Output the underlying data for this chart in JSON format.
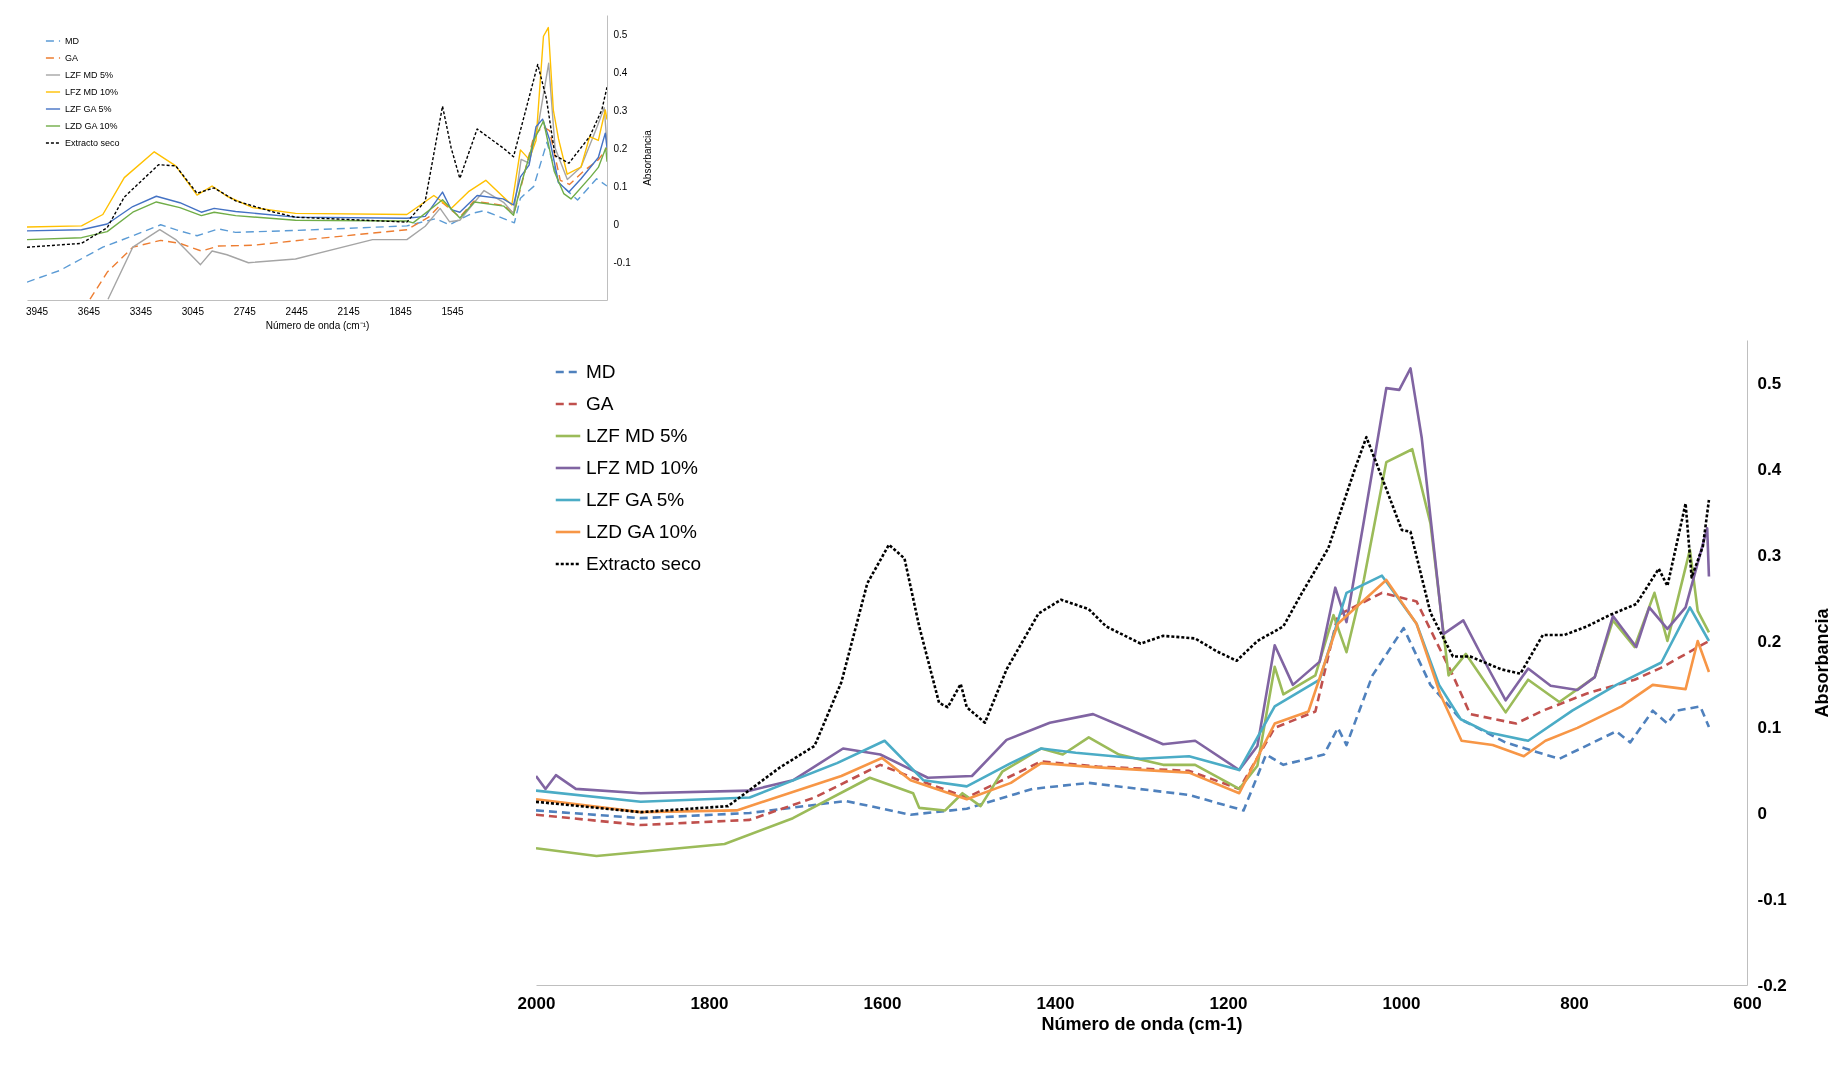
{
  "chart_data": [
    {
      "type": "line",
      "xlabel": "Número de onda (cm⁻¹)",
      "ylabel": "Absorbancia",
      "xlim": [
        4000,
        650
      ],
      "xticks": [
        3945,
        3645,
        3345,
        3045,
        2745,
        2445,
        2145,
        1845,
        1545
      ],
      "ylim": [
        -0.2,
        0.55
      ],
      "yticks": [
        -0.1,
        0,
        0.1,
        0.2,
        0.3,
        0.4,
        0.5
      ],
      "grid": false,
      "legend": "top left",
      "series": [
        {
          "name": "MD",
          "color": "#5b9bd5",
          "line_style": "dashed",
          "x": [
            4000,
            3809,
            3562,
            3389,
            3228,
            3141,
            3018,
            2894,
            2795,
            2449,
            1806,
            1640,
            1560,
            1430,
            1360,
            1185,
            1150,
            1073,
            997,
            930,
            820,
            710,
            650
          ],
          "values": [
            -0.153,
            -0.122,
            -0.061,
            -0.031,
            -0.002,
            -0.015,
            -0.031,
            -0.013,
            -0.022,
            -0.017,
            -0.005,
            0.014,
            -0.002,
            0.028,
            0.035,
            0.003,
            0.068,
            0.099,
            0.215,
            0.109,
            0.063,
            0.119,
            0.1
          ]
        },
        {
          "name": "GA",
          "color": "#ed7d31",
          "line_style": "dashed",
          "x": [
            3636,
            3537,
            3389,
            3228,
            3117,
            2993,
            2894,
            2696,
            2449,
            1806,
            1680,
            1600,
            1500,
            1420,
            1245,
            1187,
            1146,
            1073,
            1022,
            982,
            920,
            867,
            785,
            700,
            650
          ],
          "values": [
            -0.198,
            -0.127,
            -0.061,
            -0.043,
            -0.051,
            -0.071,
            -0.058,
            -0.056,
            -0.044,
            -0.015,
            0.018,
            0.056,
            0.018,
            0.06,
            0.049,
            0.028,
            0.099,
            0.23,
            0.256,
            0.246,
            0.115,
            0.104,
            0.139,
            0.169,
            0.2
          ]
        },
        {
          "name": "LZF MD 5%",
          "color": "#a5a5a5",
          "line_style": "solid",
          "x": [
            3532,
            3389,
            3233,
            3141,
            2998,
            2931,
            2845,
            2721,
            2449,
            2004,
            1806,
            1700,
            1614,
            1560,
            1500,
            1360,
            1245,
            1190,
            1146,
            1100,
            1043,
            987,
            950,
            879,
            800,
            707,
            666,
            650
          ],
          "values": [
            -0.198,
            -0.061,
            -0.015,
            -0.041,
            -0.107,
            -0.071,
            -0.081,
            -0.102,
            -0.092,
            -0.041,
            -0.041,
            -0.006,
            0.041,
            0.006,
            0.01,
            0.088,
            0.056,
            0.028,
            0.17,
            0.16,
            0.271,
            0.423,
            0.2,
            0.117,
            0.15,
            0.256,
            0.306,
            0.21
          ]
        },
        {
          "name": "LFZ MD 10%",
          "color": "#ffc000",
          "line_style": "solid",
          "x": [
            4000,
            3685,
            3562,
            3438,
            3265,
            3141,
            3018,
            2931,
            2845,
            2696,
            2449,
            1806,
            1650,
            1550,
            1450,
            1350,
            1200,
            1150,
            1100,
            1060,
            1017,
            989,
            960,
            930,
            880,
            800,
            750,
            700,
            660,
            650
          ],
          "values": [
            -0.008,
            -0.005,
            0.025,
            0.122,
            0.19,
            0.153,
            0.076,
            0.1,
            0.073,
            0.043,
            0.028,
            0.025,
            0.075,
            0.041,
            0.085,
            0.115,
            0.05,
            0.195,
            0.17,
            0.22,
            0.494,
            0.517,
            0.3,
            0.224,
            0.131,
            0.15,
            0.23,
            0.22,
            0.3,
            0.275
          ]
        },
        {
          "name": "LZF GA 5%",
          "color": "#4472c4",
          "line_style": "solid",
          "x": [
            4000,
            3685,
            3537,
            3389,
            3253,
            3117,
            2993,
            2919,
            2795,
            2449,
            1806,
            1700,
            1600,
            1550,
            1500,
            1400,
            1250,
            1190,
            1150,
            1100,
            1060,
            1022,
            980,
            930,
            870,
            800,
            700,
            660,
            650
          ],
          "values": [
            -0.018,
            -0.015,
            0,
            0.046,
            0.073,
            0.056,
            0.031,
            0.041,
            0.033,
            0.018,
            0.015,
            0.02,
            0.084,
            0.038,
            0.031,
            0.075,
            0.066,
            0.05,
            0.124,
            0.155,
            0.256,
            0.276,
            0.22,
            0.109,
            0.084,
            0.119,
            0.175,
            0.239,
            0.2
          ]
        },
        {
          "name": "LZD GA 10%",
          "color": "#70ad47",
          "line_style": "solid",
          "x": [
            4000,
            3685,
            3537,
            3389,
            3253,
            3117,
            2993,
            2919,
            2795,
            2449,
            1806,
            1770,
            1600,
            1500,
            1416,
            1245,
            1190,
            1146,
            1073,
            1017,
            955,
            900,
            858,
            745,
            700,
            657,
            650
          ],
          "values": [
            -0.041,
            -0.036,
            -0.02,
            0.031,
            0.058,
            0.043,
            0.022,
            0.031,
            0.022,
            0.01,
            0.008,
            0.003,
            0.064,
            0.016,
            0.058,
            0.047,
            0.023,
            0.104,
            0.22,
            0.271,
            0.139,
            0.08,
            0.066,
            0.124,
            0.149,
            0.2,
            0.164
          ]
        },
        {
          "name": "Extracto seco",
          "color": "#000000",
          "line_style": "dotted",
          "x": [
            4000,
            3685,
            3537,
            3438,
            3240,
            3141,
            3018,
            2919,
            2795,
            2572,
            2449,
            1806,
            1700,
            1600,
            1550,
            1500,
            1400,
            1250,
            1190,
            1050,
            1000,
            950,
            870,
            750,
            680,
            650
          ],
          "values": [
            -0.061,
            -0.051,
            -0.01,
            0.071,
            0.156,
            0.153,
            0.081,
            0.095,
            0.061,
            0.031,
            0.018,
            0.005,
            0.06,
            0.31,
            0.2,
            0.12,
            0.25,
            0.2,
            0.177,
            0.42,
            0.33,
            0.18,
            0.16,
            0.23,
            0.3,
            0.36
          ]
        }
      ]
    },
    {
      "type": "line",
      "xlabel": "Número de onda (cm-1)",
      "ylabel": "Absorbancia",
      "xlim": [
        2000,
        600
      ],
      "xticks": [
        2000,
        1800,
        1600,
        1400,
        1200,
        1000,
        800,
        600
      ],
      "ylim": [
        -0.2,
        0.55
      ],
      "yticks": [
        -0.2,
        -0.1,
        0,
        0.1,
        0.2,
        0.3,
        0.4,
        0.5
      ],
      "grid": false,
      "legend": "top left",
      "series": [
        {
          "name": "MD",
          "color": "#4f81bd",
          "line_style": "dashed",
          "x": [
            2000,
            1879,
            1753,
            1642,
            1567,
            1502,
            1426,
            1361,
            1245,
            1182,
            1156,
            1136,
            1089,
            1073,
            1063,
            1033,
            997,
            966,
            931,
            879,
            817,
            751,
            735,
            709,
            692,
            681,
            654,
            644
          ],
          "values": [
            0.003,
            -0.006,
            0,
            0.014,
            -0.002,
            0.005,
            0.028,
            0.035,
            0.021,
            0.003,
            0.068,
            0.056,
            0.068,
            0.099,
            0.079,
            0.16,
            0.215,
            0.149,
            0.109,
            0.082,
            0.063,
            0.095,
            0.082,
            0.119,
            0.104,
            0.119,
            0.124,
            0.1
          ]
        },
        {
          "name": "GA",
          "color": "#c0504d",
          "line_style": "dashed",
          "x": [
            2000,
            1879,
            1753,
            1678,
            1602,
            1557,
            1502,
            1416,
            1351,
            1245,
            1187,
            1146,
            1099,
            1073,
            1022,
            982,
            940,
            920,
            867,
            836,
            785,
            730,
            699,
            644
          ],
          "values": [
            -0.002,
            -0.014,
            -0.008,
            0.018,
            0.056,
            0.038,
            0.018,
            0.06,
            0.054,
            0.049,
            0.028,
            0.099,
            0.118,
            0.23,
            0.256,
            0.246,
            0.16,
            0.115,
            0.104,
            0.119,
            0.139,
            0.155,
            0.169,
            0.2
          ]
        },
        {
          "name": "LZF MD 5%",
          "color": "#9bbb59",
          "line_style": "solid",
          "x": [
            2000,
            1930,
            1782,
            1703,
            1614,
            1564,
            1557,
            1527,
            1507,
            1486,
            1461,
            1416,
            1391,
            1361,
            1326,
            1275,
            1238,
            1187,
            1166,
            1146,
            1136,
            1099,
            1078,
            1063,
            1043,
            1017,
            987,
            966,
            945,
            925,
            879,
            853,
            817,
            776,
            755,
            730,
            707,
            692,
            666,
            657,
            644
          ],
          "values": [
            -0.041,
            -0.05,
            -0.036,
            -0.006,
            0.041,
            0.023,
            0.006,
            0.003,
            0.023,
            0.008,
            0.048,
            0.075,
            0.068,
            0.088,
            0.068,
            0.056,
            0.056,
            0.028,
            0.055,
            0.17,
            0.138,
            0.16,
            0.23,
            0.187,
            0.271,
            0.408,
            0.423,
            0.337,
            0.16,
            0.185,
            0.117,
            0.155,
            0.129,
            0.158,
            0.224,
            0.193,
            0.256,
            0.2,
            0.306,
            0.235,
            0.21
          ]
        },
        {
          "name": "LFZ MD 10%",
          "color": "#8064a2",
          "line_style": "solid",
          "x": [
            2000,
            1989,
            1977,
            1954,
            1879,
            1753,
            1703,
            1645,
            1602,
            1547,
            1496,
            1456,
            1406,
            1356,
            1316,
            1275,
            1238,
            1187,
            1166,
            1146,
            1125,
            1094,
            1076,
            1063,
            1043,
            1017,
            1002,
            989,
            976,
            951,
            928,
            899,
            879,
            853,
            827,
            796,
            776,
            755,
            728,
            713,
            692,
            671,
            646,
            644
          ],
          "values": [
            0.043,
            0.028,
            0.044,
            0.028,
            0.023,
            0.026,
            0.038,
            0.075,
            0.068,
            0.041,
            0.043,
            0.085,
            0.105,
            0.115,
            0.098,
            0.08,
            0.084,
            0.05,
            0.078,
            0.195,
            0.149,
            0.176,
            0.262,
            0.222,
            0.339,
            0.494,
            0.492,
            0.517,
            0.436,
            0.208,
            0.224,
            0.168,
            0.131,
            0.168,
            0.148,
            0.143,
            0.158,
            0.229,
            0.193,
            0.239,
            0.214,
            0.239,
            0.331,
            0.275
          ]
        },
        {
          "name": "LZF GA 5%",
          "color": "#4bacc6",
          "line_style": "solid",
          "x": [
            2000,
            1879,
            1753,
            1652,
            1597,
            1552,
            1502,
            1451,
            1416,
            1376,
            1301,
            1245,
            1187,
            1146,
            1094,
            1063,
            1022,
            982,
            956,
            931,
            900,
            853,
            802,
            751,
            699,
            666,
            644
          ],
          "values": [
            0.026,
            0.013,
            0.018,
            0.058,
            0.084,
            0.038,
            0.031,
            0.058,
            0.075,
            0.07,
            0.063,
            0.066,
            0.05,
            0.124,
            0.155,
            0.256,
            0.276,
            0.22,
            0.149,
            0.109,
            0.094,
            0.084,
            0.119,
            0.149,
            0.175,
            0.239,
            0.2
          ]
        },
        {
          "name": "LZD GA 10%",
          "color": "#f79646",
          "line_style": "solid",
          "x": [
            2000,
            1879,
            1768,
            1647,
            1600,
            1567,
            1502,
            1451,
            1416,
            1351,
            1245,
            1187,
            1146,
            1107,
            1073,
            1017,
            982,
            955,
            930,
            894,
            858,
            833,
            796,
            745,
            709,
            671,
            657,
            644
          ],
          "values": [
            0.016,
            0.001,
            0.003,
            0.043,
            0.064,
            0.038,
            0.016,
            0.035,
            0.058,
            0.053,
            0.047,
            0.023,
            0.104,
            0.118,
            0.22,
            0.271,
            0.22,
            0.139,
            0.084,
            0.079,
            0.066,
            0.084,
            0.099,
            0.124,
            0.149,
            0.144,
            0.2,
            0.164
          ]
        },
        {
          "name": "Extracto seco",
          "color": "#000000",
          "line_style": "dotted",
          "x": [
            2000,
            1879,
            1778,
            1718,
            1678,
            1647,
            1617,
            1592,
            1574,
            1557,
            1534,
            1524,
            1509,
            1502,
            1481,
            1456,
            1419,
            1393,
            1361,
            1341,
            1301,
            1275,
            1238,
            1213,
            1190,
            1166,
            1136,
            1115,
            1084,
            1053,
            1040,
            1022,
            999,
            989,
            966,
            940,
            920,
            884,
            862,
            836,
            811,
            785,
            759,
            728,
            702,
            692,
            671,
            664,
            651,
            644
          ],
          "values": [
            0.013,
            0.001,
            0.008,
            0.053,
            0.078,
            0.152,
            0.267,
            0.312,
            0.296,
            0.217,
            0.128,
            0.123,
            0.15,
            0.123,
            0.105,
            0.167,
            0.232,
            0.248,
            0.237,
            0.217,
            0.197,
            0.206,
            0.203,
            0.188,
            0.177,
            0.2,
            0.217,
            0.255,
            0.308,
            0.401,
            0.437,
            0.39,
            0.329,
            0.327,
            0.233,
            0.182,
            0.182,
            0.167,
            0.162,
            0.207,
            0.207,
            0.217,
            0.23,
            0.243,
            0.284,
            0.264,
            0.36,
            0.274,
            0.31,
            0.364
          ]
        }
      ]
    }
  ]
}
